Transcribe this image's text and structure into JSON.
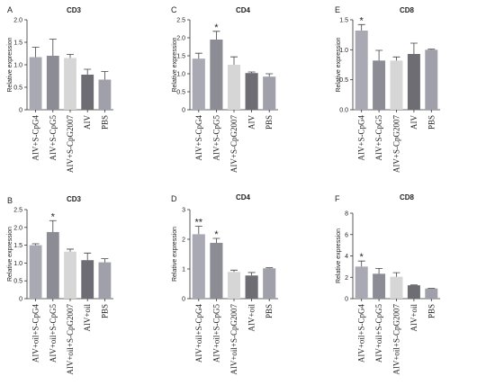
{
  "colors": {
    "bars": [
      "#a9a9b3",
      "#8c8c94",
      "#d6d6d6",
      "#6d6d73",
      "#a0a0aa"
    ],
    "stroke": "#333333"
  },
  "chart_data": [
    {
      "type": "bar",
      "letter": "A",
      "title": "CD3",
      "ylabel": "Relative expression",
      "categories": [
        "AIV+S-CpG4",
        "AIV+S-CpG5",
        "AIV+S-CpG2007",
        "AIV",
        "PBS"
      ],
      "values": [
        1.17,
        1.2,
        1.15,
        0.78,
        0.67
      ],
      "errors": [
        0.22,
        0.37,
        0.08,
        0.12,
        0.18
      ],
      "significance": [
        "",
        "",
        "",
        "",
        ""
      ],
      "ylim": [
        0,
        2.0
      ],
      "yticks": [
        "0",
        "0.5",
        "1.0",
        "1.5",
        "2.0"
      ],
      "grid": false
    },
    {
      "type": "bar",
      "letter": "C",
      "title": "CD4",
      "ylabel": "Relative expression",
      "categories": [
        "AIV+S-CpG4",
        "AIV+S-CpG5",
        "AIV+S-CpG2007",
        "AIV",
        "PBS"
      ],
      "values": [
        1.42,
        1.95,
        1.25,
        1.02,
        0.92
      ],
      "errors": [
        0.15,
        0.23,
        0.22,
        0.03,
        0.08
      ],
      "significance": [
        "",
        "*",
        "",
        "",
        ""
      ],
      "ylim": [
        0,
        2.5
      ],
      "yticks": [
        "0",
        "0.5",
        "1.0",
        "1.5",
        "2.0",
        "2.5"
      ],
      "grid": false
    },
    {
      "type": "bar",
      "letter": "E",
      "title": "CD8",
      "ylabel": "Relative expression",
      "categories": [
        "AIV+S-CpG4",
        "AIV+S-CpG5",
        "AIV+S-CpG2007",
        "AIV",
        "PBS"
      ],
      "values": [
        1.32,
        0.82,
        0.82,
        0.93,
        1.0
      ],
      "errors": [
        0.1,
        0.17,
        0.06,
        0.18,
        0.01
      ],
      "significance": [
        "*",
        "",
        "",
        "",
        ""
      ],
      "ylim": [
        0,
        1.5
      ],
      "yticks": [
        "0.0",
        "0.5",
        "1.0",
        "1.5"
      ],
      "grid": false
    },
    {
      "type": "bar",
      "letter": "B",
      "title": "CD3",
      "ylabel": "Relative expression",
      "categories": [
        "AIV+oil+S-CpG4",
        "AIV+oil+S-CpG5",
        "AIV+oil+S-CpG2007",
        "AIV+oil",
        "PBS"
      ],
      "values": [
        1.5,
        1.87,
        1.32,
        1.08,
        1.02
      ],
      "errors": [
        0.04,
        0.32,
        0.07,
        0.2,
        0.1
      ],
      "significance": [
        "",
        "*",
        "",
        "",
        ""
      ],
      "ylim": [
        0,
        2.5
      ],
      "yticks": [
        "0",
        "0.5",
        "1.0",
        "1.5",
        "2.0",
        "2.5"
      ],
      "grid": false
    },
    {
      "type": "bar",
      "letter": "D",
      "title": "CD4",
      "ylabel": "Relative expression",
      "categories": [
        "AIV+oil+S-CpG4",
        "AIV+oil+S-CpG5",
        "AIV+oil+S-CpG2007",
        "AIV+oil",
        "PBS"
      ],
      "values": [
        2.17,
        1.88,
        0.9,
        0.78,
        1.02
      ],
      "errors": [
        0.27,
        0.15,
        0.06,
        0.1,
        0.02
      ],
      "significance": [
        "**",
        "*",
        "",
        "",
        ""
      ],
      "ylim": [
        0,
        3
      ],
      "yticks": [
        "0",
        "1",
        "2",
        "3"
      ],
      "grid": false
    },
    {
      "type": "bar",
      "letter": "F",
      "title": "CD8",
      "ylabel": "Relative expression",
      "categories": [
        "AIV+oil+S-CpG4",
        "AIV+oil+S-CpG5",
        "AIV+oil+S-CpG2007",
        "AIV+oil",
        "PBS"
      ],
      "values": [
        3.0,
        2.33,
        2.05,
        1.25,
        0.95
      ],
      "errors": [
        0.52,
        0.5,
        0.38,
        0.03,
        0.02
      ],
      "significance": [
        "*",
        "",
        "",
        "",
        ""
      ],
      "ylim": [
        0,
        8
      ],
      "yticks": [
        "0",
        "2",
        "4",
        "6",
        "8"
      ],
      "grid": false
    }
  ]
}
